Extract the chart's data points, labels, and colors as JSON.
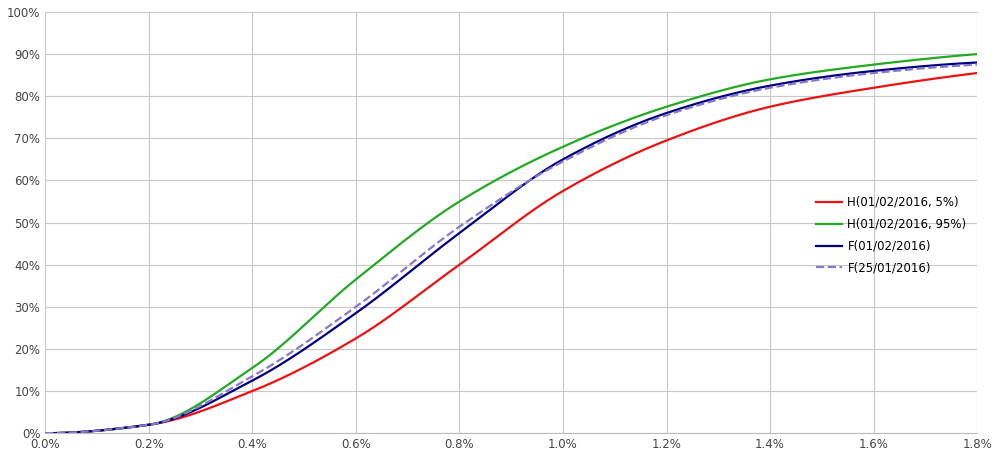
{
  "background_color": "#ffffff",
  "grid_color": "#c8c8c8",
  "xlim": [
    0.0,
    0.018
  ],
  "ylim": [
    0.0,
    1.0
  ],
  "xticks": [
    0.0,
    0.002,
    0.004,
    0.006,
    0.008,
    0.01,
    0.012,
    0.014,
    0.016,
    0.018
  ],
  "yticks": [
    0.0,
    0.1,
    0.2,
    0.3,
    0.4,
    0.5,
    0.6,
    0.7,
    0.8,
    0.9,
    1.0
  ],
  "curves": [
    {
      "label": "H(01/02/2016, 5%)",
      "color": "#ee1111",
      "linestyle": "solid",
      "linewidth": 1.6,
      "mu_ln": -5.2,
      "s_ln": 0.85,
      "shift": 0.002
    },
    {
      "label": "H(01/02/2016, 95%)",
      "color": "#22aa22",
      "linestyle": "solid",
      "linewidth": 1.6,
      "mu_ln": -5.55,
      "s_ln": 0.85,
      "shift": 0.002
    },
    {
      "label": "F(01/02/2016)",
      "color": "#000080",
      "linestyle": "solid",
      "linewidth": 1.6,
      "mu_ln": -5.35,
      "s_ln": 0.85,
      "shift": 0.002
    },
    {
      "label": "F(25/01/2016)",
      "color": "#8878cc",
      "linestyle": "dashed",
      "linewidth": 1.6,
      "mu_ln": -5.3,
      "s_ln": 0.85,
      "shift": 0.002
    }
  ]
}
